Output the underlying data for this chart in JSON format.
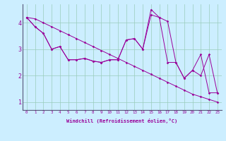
{
  "xlabel": "Windchill (Refroidissement éolien,°C)",
  "bg_color": "#cceeff",
  "line_color": "#990099",
  "grid_color": "#99ccbb",
  "xlim": [
    -0.5,
    23.5
  ],
  "ylim": [
    0.7,
    4.7
  ],
  "xticks": [
    0,
    1,
    2,
    3,
    4,
    5,
    6,
    7,
    8,
    9,
    10,
    11,
    12,
    13,
    14,
    15,
    16,
    17,
    18,
    19,
    20,
    21,
    22,
    23
  ],
  "yticks": [
    1,
    2,
    3,
    4
  ],
  "series": {
    "line1_x": [
      0,
      1,
      2,
      3,
      4,
      5,
      6,
      7,
      8,
      9,
      10,
      11,
      12,
      13,
      14,
      15,
      16,
      17,
      18,
      19,
      20,
      21,
      22,
      23
    ],
    "line1_y": [
      4.2,
      4.15,
      4.0,
      3.85,
      3.7,
      3.55,
      3.4,
      3.25,
      3.1,
      2.95,
      2.8,
      2.65,
      2.5,
      2.35,
      2.2,
      2.05,
      1.9,
      1.75,
      1.6,
      1.45,
      1.3,
      1.2,
      1.1,
      1.0
    ],
    "line2_x": [
      0,
      1,
      2,
      3,
      4,
      5,
      6,
      7,
      8,
      9,
      10,
      11,
      12,
      13,
      14,
      15,
      16,
      17,
      18,
      19,
      20,
      21,
      22,
      23
    ],
    "line2_y": [
      4.2,
      3.85,
      3.6,
      3.0,
      3.1,
      2.6,
      2.6,
      2.65,
      2.55,
      2.5,
      2.6,
      2.6,
      3.35,
      3.4,
      3.0,
      4.3,
      4.2,
      2.5,
      2.5,
      1.9,
      2.2,
      2.0,
      2.8,
      1.35
    ],
    "line3_x": [
      0,
      1,
      2,
      3,
      4,
      5,
      6,
      7,
      8,
      9,
      10,
      11,
      12,
      13,
      14,
      15,
      16,
      17,
      18,
      19,
      20,
      21,
      22,
      23
    ],
    "line3_y": [
      4.2,
      3.85,
      3.6,
      3.0,
      3.1,
      2.6,
      2.6,
      2.65,
      2.55,
      2.5,
      2.6,
      2.6,
      3.35,
      3.4,
      3.0,
      4.5,
      4.2,
      4.05,
      2.5,
      1.9,
      2.2,
      2.8,
      1.35,
      1.35
    ]
  }
}
